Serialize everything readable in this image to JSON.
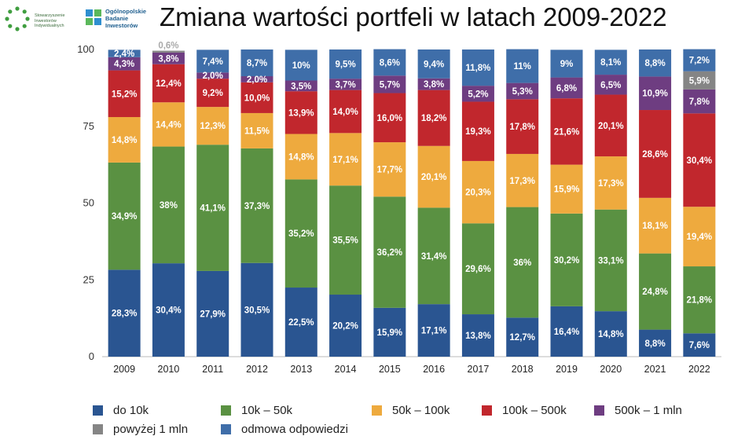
{
  "header": {
    "title": "Zmiana wartości portfeli w latach 2009-2022",
    "logo_left_lines": [
      "Stowarzyszenie",
      "Inwestorów",
      "Indywidualnych"
    ],
    "logo_right_lines": [
      "Ogólnopolskie",
      "Badanie",
      "Inwestorów"
    ]
  },
  "colors": {
    "do10k": "#2a5591",
    "10k50k": "#5a9142",
    "50k100k": "#eeaa3e",
    "100k500k": "#c1272d",
    "500k1mln": "#6e3d81",
    "powyzej1mln": "#858585",
    "odmowa": "#3f6ea9"
  },
  "chart_data": {
    "type": "bar",
    "stacked": true,
    "categories": [
      "2009",
      "2010",
      "2011",
      "2012",
      "2013",
      "2014",
      "2015",
      "2016",
      "2017",
      "2018",
      "2019",
      "2020",
      "2021",
      "2022"
    ],
    "ylim": [
      0,
      100
    ],
    "yticks": [
      0,
      25,
      50,
      75,
      100
    ],
    "title": "",
    "xlabel": "",
    "ylabel": "",
    "legend_position": "bottom",
    "series": [
      {
        "name": "do 10k",
        "key": "do10k",
        "values": [
          28.3,
          30.4,
          27.9,
          30.5,
          22.5,
          20.2,
          15.9,
          17.1,
          13.8,
          12.7,
          16.4,
          14.8,
          8.8,
          7.6
        ],
        "labels": [
          "28,3%",
          "30,4%",
          "27,9%",
          "30,5%",
          "22,5%",
          "20,2%",
          "15,9%",
          "17,1%",
          "13,8%",
          "12,7%",
          "16,4%",
          "14,8%",
          "8,8%",
          "7,6%"
        ]
      },
      {
        "name": "10k – 50k",
        "key": "10k50k",
        "values": [
          34.9,
          38,
          41.1,
          37.3,
          35.2,
          35.5,
          36.2,
          31.4,
          29.6,
          36,
          30.2,
          33.1,
          24.8,
          21.8
        ],
        "labels": [
          "34,9%",
          "38%",
          "41,1%",
          "37,3%",
          "35,2%",
          "35,5%",
          "36,2%",
          "31,4%",
          "29,6%",
          "36%",
          "30,2%",
          "33,1%",
          "24,8%",
          "21,8%"
        ]
      },
      {
        "name": "50k – 100k",
        "key": "50k100k",
        "values": [
          14.8,
          14.4,
          12.3,
          11.5,
          14.8,
          17.1,
          17.7,
          20.1,
          20.3,
          17.3,
          15.9,
          17.3,
          18.1,
          19.4
        ],
        "labels": [
          "14,8%",
          "14,4%",
          "12,3%",
          "11,5%",
          "14,8%",
          "17,1%",
          "17,7%",
          "20,1%",
          "20,3%",
          "17,3%",
          "15,9%",
          "17,3%",
          "18,1%",
          "19,4%"
        ]
      },
      {
        "name": "100k – 500k",
        "key": "100k500k",
        "values": [
          15.2,
          12.4,
          9.2,
          10,
          13.9,
          14,
          16,
          18.2,
          19.3,
          17.8,
          21.6,
          20.1,
          28.6,
          30.4
        ],
        "labels": [
          "15,2%",
          "12,4%",
          "9,2%",
          "10,0%",
          "13,9%",
          "14,0%",
          "16,0%",
          "18,2%",
          "19,3%",
          "17,8%",
          "21,6%",
          "20,1%",
          "28,6%",
          "30,4%"
        ]
      },
      {
        "name": "500k – 1 mln",
        "key": "500k1mln",
        "values": [
          4.3,
          3.8,
          2.0,
          2.0,
          3.5,
          3.7,
          5.7,
          3.8,
          5.2,
          5.3,
          6.8,
          6.5,
          10.9,
          7.8
        ],
        "labels": [
          "4,3%",
          "3,8%",
          "2,0%",
          "2,0%",
          "3,5%",
          "3,7%",
          "5,7%",
          "3,8%",
          "5,2%",
          "5,3%",
          "6,8%",
          "6,5%",
          "10,9%",
          "7,8%"
        ]
      },
      {
        "name": "powyżej 1 mln",
        "key": "powyzej1mln",
        "values": [
          0,
          0.6,
          0,
          0,
          0,
          0,
          0,
          0,
          0,
          0,
          0,
          0,
          0,
          5.9
        ],
        "labels": [
          "",
          "0,6%",
          "",
          "",
          "",
          "",
          "",
          "",
          "",
          "",
          "",
          "",
          "",
          "5,9%"
        ]
      },
      {
        "name": "odmowa odpowiedzi",
        "key": "odmowa",
        "values": [
          2.4,
          0,
          7.4,
          8.7,
          10,
          9.5,
          8.6,
          9.4,
          11.8,
          11,
          9,
          8.1,
          8.8,
          7.2
        ],
        "labels": [
          "2,4%",
          "",
          "7,4%",
          "8,7%",
          "10%",
          "9,5%",
          "8,6%",
          "9,4%",
          "11,8%",
          "11%",
          "9%",
          "8,1%",
          "8,8%",
          "7,2%"
        ]
      }
    ]
  },
  "legend": [
    {
      "key": "do10k",
      "label": "do 10k"
    },
    {
      "key": "10k50k",
      "label": "10k – 50k"
    },
    {
      "key": "50k100k",
      "label": "50k – 100k"
    },
    {
      "key": "100k500k",
      "label": "100k – 500k"
    },
    {
      "key": "500k1mln",
      "label": "500k – 1 mln"
    },
    {
      "key": "powyzej1mln",
      "label": "powyżej 1 mln"
    },
    {
      "key": "odmowa",
      "label": "odmowa odpowiedzi"
    }
  ]
}
